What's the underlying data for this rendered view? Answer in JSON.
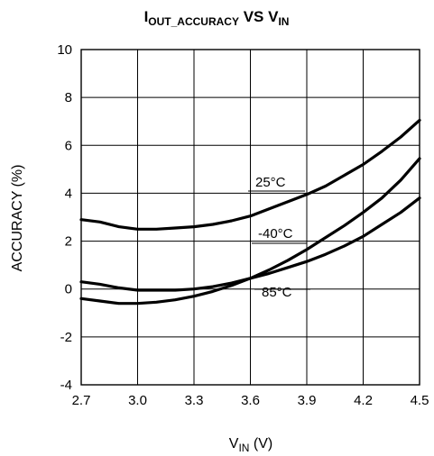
{
  "chart_data": {
    "type": "line",
    "title": {
      "main": "I",
      "sub": "OUT_ACCURACY",
      "middle": " VS V",
      "sub2": "IN"
    },
    "xlabel": {
      "main": "V",
      "sub": "IN",
      "rest": " (V)"
    },
    "ylabel": "ACCURACY (%)",
    "xlim": [
      2.7,
      4.5
    ],
    "ylim": [
      -4,
      10
    ],
    "x_ticks": [
      "2.7",
      "3.0",
      "3.3",
      "3.6",
      "3.9",
      "4.2",
      "4.5"
    ],
    "y_ticks": [
      "-4",
      "-2",
      "0",
      "2",
      "4",
      "6",
      "8",
      "10"
    ],
    "x_tick_values": [
      2.7,
      3.0,
      3.3,
      3.6,
      3.9,
      4.2,
      4.5
    ],
    "y_tick_values": [
      -4,
      -2,
      0,
      2,
      4,
      6,
      8,
      10
    ],
    "grid": true,
    "series": [
      {
        "name": "25°C",
        "x": [
          2.7,
          2.8,
          2.9,
          3.0,
          3.1,
          3.2,
          3.3,
          3.4,
          3.5,
          3.6,
          3.7,
          3.8,
          3.9,
          4.0,
          4.1,
          4.2,
          4.3,
          4.4,
          4.5
        ],
        "y": [
          2.9,
          2.8,
          2.6,
          2.5,
          2.5,
          2.55,
          2.6,
          2.7,
          2.85,
          3.05,
          3.35,
          3.65,
          3.95,
          4.3,
          4.75,
          5.2,
          5.75,
          6.35,
          7.05
        ]
      },
      {
        "name": "-40°C",
        "x": [
          2.7,
          2.8,
          2.9,
          3.0,
          3.1,
          3.2,
          3.3,
          3.4,
          3.5,
          3.6,
          3.7,
          3.8,
          3.9,
          4.0,
          4.1,
          4.2,
          4.3,
          4.4,
          4.5
        ],
        "y": [
          -0.4,
          -0.5,
          -0.6,
          -0.6,
          -0.55,
          -0.45,
          -0.3,
          -0.1,
          0.15,
          0.45,
          0.8,
          1.2,
          1.65,
          2.15,
          2.65,
          3.2,
          3.8,
          4.55,
          5.45
        ]
      },
      {
        "name": "85°C",
        "x": [
          2.7,
          2.8,
          2.9,
          3.0,
          3.1,
          3.2,
          3.3,
          3.4,
          3.5,
          3.6,
          3.7,
          3.8,
          3.9,
          4.0,
          4.1,
          4.2,
          4.3,
          4.4,
          4.5
        ],
        "y": [
          0.3,
          0.2,
          0.05,
          -0.05,
          -0.05,
          -0.05,
          0.0,
          0.1,
          0.25,
          0.45,
          0.65,
          0.9,
          1.15,
          1.45,
          1.8,
          2.2,
          2.7,
          3.2,
          3.8
        ]
      }
    ]
  }
}
